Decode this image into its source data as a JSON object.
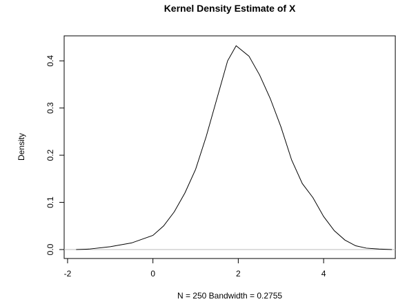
{
  "chart_data": {
    "type": "line",
    "title": "Kernel Density Estimate of X",
    "xlabel": "N = 250   Bandwidth = 0.2755",
    "ylabel": "Density",
    "x": [
      -1.8,
      -1.5,
      -1,
      -0.5,
      0,
      0.25,
      0.5,
      0.75,
      1,
      1.25,
      1.5,
      1.75,
      1.95,
      2.25,
      2.5,
      2.75,
      3,
      3.25,
      3.5,
      3.75,
      4,
      4.25,
      4.5,
      4.75,
      5,
      5.3,
      5.6
    ],
    "series": [
      {
        "name": "X",
        "color": "#000000",
        "values": [
          0,
          0.001,
          0.006,
          0.014,
          0.03,
          0.05,
          0.08,
          0.12,
          0.17,
          0.24,
          0.32,
          0.4,
          0.432,
          0.41,
          0.37,
          0.32,
          0.26,
          0.19,
          0.14,
          0.11,
          0.07,
          0.04,
          0.02,
          0.008,
          0.003,
          0.001,
          0
        ]
      }
    ],
    "xlim": [
      -2.08,
      5.68
    ],
    "ylim": [
      -0.019,
      0.453
    ],
    "xticks": [
      -2,
      0,
      2,
      4
    ],
    "yticks": [
      {
        "value": 0,
        "label": "0.0"
      },
      {
        "value": 0.1,
        "label": "0.1"
      },
      {
        "value": 0.2,
        "label": "0.2"
      },
      {
        "value": 0.3,
        "label": "0.3"
      },
      {
        "value": 0.4,
        "label": "0.4"
      }
    ],
    "zero_line_color": "#bbbbbb"
  }
}
